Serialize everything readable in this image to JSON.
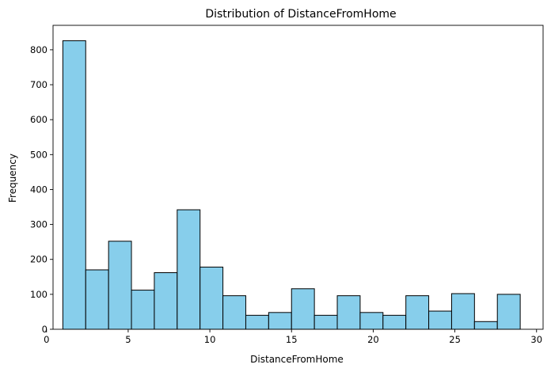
{
  "chart_data": {
    "type": "bar",
    "title": "Distribution of DistanceFromHome",
    "xlabel": "DistanceFromHome",
    "ylabel": "Frequency",
    "xlim": [
      0.4,
      30.4
    ],
    "ylim": [
      0,
      870
    ],
    "xticks": [
      0,
      5,
      10,
      15,
      20,
      25,
      30
    ],
    "yticks": [
      0,
      100,
      200,
      300,
      400,
      500,
      600,
      700,
      800
    ],
    "bar_color": "#87CEEB",
    "edge_color": "#000000",
    "grid": false,
    "bins": [
      {
        "x0": 1.0,
        "x1": 2.4,
        "count": 826
      },
      {
        "x0": 2.4,
        "x1": 3.8,
        "count": 170
      },
      {
        "x0": 3.8,
        "x1": 5.2,
        "count": 252
      },
      {
        "x0": 5.2,
        "x1": 6.6,
        "count": 112
      },
      {
        "x0": 6.6,
        "x1": 8.0,
        "count": 162
      },
      {
        "x0": 8.0,
        "x1": 9.4,
        "count": 342
      },
      {
        "x0": 9.4,
        "x1": 10.8,
        "count": 178
      },
      {
        "x0": 10.8,
        "x1": 12.2,
        "count": 96
      },
      {
        "x0": 12.2,
        "x1": 13.6,
        "count": 40
      },
      {
        "x0": 13.6,
        "x1": 15.0,
        "count": 48
      },
      {
        "x0": 15.0,
        "x1": 16.4,
        "count": 116
      },
      {
        "x0": 16.4,
        "x1": 17.8,
        "count": 40
      },
      {
        "x0": 17.8,
        "x1": 19.2,
        "count": 96
      },
      {
        "x0": 19.2,
        "x1": 20.6,
        "count": 48
      },
      {
        "x0": 20.6,
        "x1": 22.0,
        "count": 40
      },
      {
        "x0": 22.0,
        "x1": 23.4,
        "count": 96
      },
      {
        "x0": 23.4,
        "x1": 24.8,
        "count": 52
      },
      {
        "x0": 24.8,
        "x1": 26.2,
        "count": 102
      },
      {
        "x0": 26.2,
        "x1": 27.6,
        "count": 22
      },
      {
        "x0": 27.6,
        "x1": 29.0,
        "count": 100
      }
    ]
  }
}
